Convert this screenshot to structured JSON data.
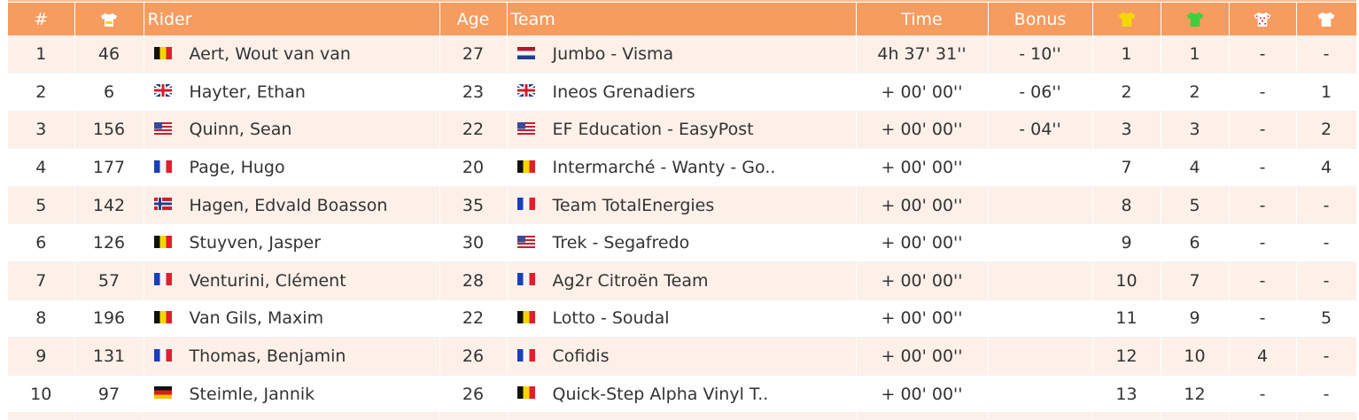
{
  "headers": {
    "rank": "#",
    "bib_icon": "number-jersey-icon",
    "rider": "Rider",
    "age": "Age",
    "team": "Team",
    "time": "Time",
    "bonus": "Bonus",
    "gc_icon": "yellow-jersey-icon",
    "points_icon": "green-jersey-icon",
    "kom_icon": "polka-dot-jersey-icon",
    "youth_icon": "white-jersey-icon"
  },
  "colors": {
    "header_bg": "#f69c5f",
    "row_alt_bg": "#fdf0e9",
    "yellow_jersey": "#f5d800",
    "green_jersey": "#3ecf3e",
    "polka_dot": "#e0303a"
  },
  "rows": [
    {
      "rank": "1",
      "bib": "46",
      "rider_flag": "be",
      "rider": "Aert, Wout van van",
      "age": "27",
      "team_flag": "nl",
      "team": "Jumbo - Visma",
      "time": "4h 37' 31''",
      "bonus": "- 10''",
      "gc": "1",
      "points": "1",
      "kom": "-",
      "youth": "-"
    },
    {
      "rank": "2",
      "bib": "6",
      "rider_flag": "gb",
      "rider": "Hayter, Ethan",
      "age": "23",
      "team_flag": "gb",
      "team": "Ineos Grenadiers",
      "time": "+ 00' 00''",
      "bonus": "- 06''",
      "gc": "2",
      "points": "2",
      "kom": "-",
      "youth": "1"
    },
    {
      "rank": "3",
      "bib": "156",
      "rider_flag": "us",
      "rider": "Quinn, Sean",
      "age": "22",
      "team_flag": "us",
      "team": "EF Education - EasyPost",
      "time": "+ 00' 00''",
      "bonus": "- 04''",
      "gc": "3",
      "points": "3",
      "kom": "-",
      "youth": "2"
    },
    {
      "rank": "4",
      "bib": "177",
      "rider_flag": "fr",
      "rider": "Page, Hugo",
      "age": "20",
      "team_flag": "be",
      "team": "Intermarché - Wanty - Go..",
      "time": "+ 00' 00''",
      "bonus": "",
      "gc": "7",
      "points": "4",
      "kom": "-",
      "youth": "4"
    },
    {
      "rank": "5",
      "bib": "142",
      "rider_flag": "no",
      "rider": "Hagen, Edvald Boasson",
      "age": "35",
      "team_flag": "fr",
      "team": "Team TotalEnergies",
      "time": "+ 00' 00''",
      "bonus": "",
      "gc": "8",
      "points": "5",
      "kom": "-",
      "youth": "-"
    },
    {
      "rank": "6",
      "bib": "126",
      "rider_flag": "be",
      "rider": "Stuyven, Jasper",
      "age": "30",
      "team_flag": "us",
      "team": "Trek - Segafredo",
      "time": "+ 00' 00''",
      "bonus": "",
      "gc": "9",
      "points": "6",
      "kom": "-",
      "youth": "-"
    },
    {
      "rank": "7",
      "bib": "57",
      "rider_flag": "fr",
      "rider": "Venturini, Clément",
      "age": "28",
      "team_flag": "fr",
      "team": "Ag2r Citroën Team",
      "time": "+ 00' 00''",
      "bonus": "",
      "gc": "10",
      "points": "7",
      "kom": "-",
      "youth": "-"
    },
    {
      "rank": "8",
      "bib": "196",
      "rider_flag": "be",
      "rider": "Van Gils, Maxim",
      "age": "22",
      "team_flag": "be",
      "team": "Lotto - Soudal",
      "time": "+ 00' 00''",
      "bonus": "",
      "gc": "11",
      "points": "9",
      "kom": "-",
      "youth": "5"
    },
    {
      "rank": "9",
      "bib": "131",
      "rider_flag": "fr",
      "rider": "Thomas, Benjamin",
      "age": "26",
      "team_flag": "fr",
      "team": "Cofidis",
      "time": "+ 00' 00''",
      "bonus": "",
      "gc": "12",
      "points": "10",
      "kom": "4",
      "youth": "-"
    },
    {
      "rank": "10",
      "bib": "97",
      "rider_flag": "de",
      "rider": "Steimle, Jannik",
      "age": "26",
      "team_flag": "be",
      "team": "Quick-Step Alpha Vinyl T..",
      "time": "+ 00' 00''",
      "bonus": "",
      "gc": "13",
      "points": "12",
      "kom": "-",
      "youth": "-"
    }
  ]
}
